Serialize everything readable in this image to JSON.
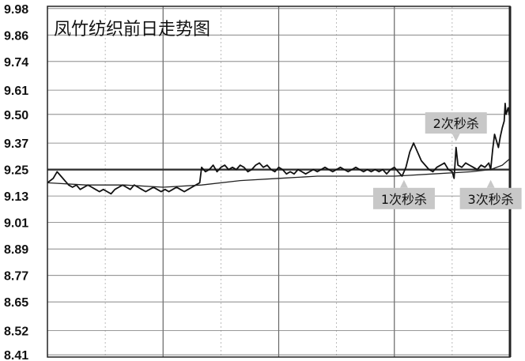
{
  "chart_data": {
    "type": "line",
    "title": "凤竹纺织前日走势图",
    "xlabel": "",
    "ylabel": "",
    "ylim": [
      8.4,
      9.99
    ],
    "yticks": [
      "9.98",
      "9.86",
      "9.74",
      "9.61",
      "9.50",
      "9.37",
      "9.25",
      "9.13",
      "9.01",
      "8.89",
      "8.77",
      "8.65",
      "8.52",
      "8.41"
    ],
    "reference_price": 9.25,
    "x_count": 240,
    "grid": true,
    "series": [
      {
        "style": "price",
        "points": [
          [
            0,
            9.19
          ],
          [
            3,
            9.21
          ],
          [
            5,
            9.24
          ],
          [
            7,
            9.22
          ],
          [
            9,
            9.2
          ],
          [
            11,
            9.18
          ],
          [
            13,
            9.17
          ],
          [
            15,
            9.18
          ],
          [
            17,
            9.16
          ],
          [
            19,
            9.17
          ],
          [
            21,
            9.18
          ],
          [
            23,
            9.17
          ],
          [
            25,
            9.16
          ],
          [
            27,
            9.15
          ],
          [
            29,
            9.16
          ],
          [
            31,
            9.15
          ],
          [
            33,
            9.14
          ],
          [
            35,
            9.16
          ],
          [
            37,
            9.17
          ],
          [
            39,
            9.18
          ],
          [
            41,
            9.17
          ],
          [
            43,
            9.16
          ],
          [
            45,
            9.18
          ],
          [
            47,
            9.17
          ],
          [
            49,
            9.16
          ],
          [
            51,
            9.15
          ],
          [
            53,
            9.16
          ],
          [
            55,
            9.17
          ],
          [
            57,
            9.16
          ],
          [
            59,
            9.15
          ],
          [
            61,
            9.16
          ],
          [
            63,
            9.15
          ],
          [
            65,
            9.16
          ],
          [
            67,
            9.17
          ],
          [
            69,
            9.16
          ],
          [
            71,
            9.15
          ],
          [
            73,
            9.16
          ],
          [
            75,
            9.17
          ],
          [
            77,
            9.18
          ],
          [
            79,
            9.19
          ],
          [
            80,
            9.26
          ],
          [
            82,
            9.24
          ],
          [
            84,
            9.25
          ],
          [
            86,
            9.27
          ],
          [
            88,
            9.24
          ],
          [
            90,
            9.26
          ],
          [
            92,
            9.27
          ],
          [
            94,
            9.25
          ],
          [
            96,
            9.26
          ],
          [
            98,
            9.25
          ],
          [
            100,
            9.27
          ],
          [
            102,
            9.26
          ],
          [
            104,
            9.24
          ],
          [
            106,
            9.25
          ],
          [
            108,
            9.27
          ],
          [
            110,
            9.28
          ],
          [
            112,
            9.26
          ],
          [
            114,
            9.27
          ],
          [
            116,
            9.25
          ],
          [
            118,
            9.24
          ],
          [
            120,
            9.26
          ],
          [
            122,
            9.25
          ],
          [
            124,
            9.23
          ],
          [
            126,
            9.24
          ],
          [
            128,
            9.23
          ],
          [
            130,
            9.25
          ],
          [
            132,
            9.24
          ],
          [
            134,
            9.23
          ],
          [
            136,
            9.24
          ],
          [
            138,
            9.25
          ],
          [
            140,
            9.24
          ],
          [
            142,
            9.25
          ],
          [
            144,
            9.26
          ],
          [
            146,
            9.25
          ],
          [
            148,
            9.24
          ],
          [
            150,
            9.25
          ],
          [
            152,
            9.26
          ],
          [
            154,
            9.25
          ],
          [
            156,
            9.24
          ],
          [
            158,
            9.25
          ],
          [
            160,
            9.26
          ],
          [
            162,
            9.25
          ],
          [
            164,
            9.24
          ],
          [
            166,
            9.25
          ],
          [
            168,
            9.24
          ],
          [
            170,
            9.25
          ],
          [
            172,
            9.24
          ],
          [
            174,
            9.25
          ],
          [
            176,
            9.23
          ],
          [
            178,
            9.25
          ],
          [
            180,
            9.26
          ],
          [
            182,
            9.24
          ],
          [
            184,
            9.22
          ],
          [
            186,
            9.26
          ],
          [
            188,
            9.33
          ],
          [
            190,
            9.37
          ],
          [
            192,
            9.33
          ],
          [
            194,
            9.29
          ],
          [
            196,
            9.27
          ],
          [
            198,
            9.25
          ],
          [
            200,
            9.24
          ],
          [
            202,
            9.26
          ],
          [
            204,
            9.27
          ],
          [
            206,
            9.28
          ],
          [
            208,
            9.25
          ],
          [
            210,
            9.24
          ],
          [
            211,
            9.21
          ],
          [
            212,
            9.35
          ],
          [
            213,
            9.27
          ],
          [
            215,
            9.26
          ],
          [
            217,
            9.28
          ],
          [
            219,
            9.27
          ],
          [
            221,
            9.26
          ],
          [
            223,
            9.25
          ],
          [
            225,
            9.27
          ],
          [
            227,
            9.26
          ],
          [
            229,
            9.28
          ],
          [
            230,
            9.25
          ],
          [
            231,
            9.34
          ],
          [
            232,
            9.41
          ],
          [
            233,
            9.38
          ],
          [
            234,
            9.35
          ],
          [
            235,
            9.4
          ],
          [
            236,
            9.44
          ],
          [
            237,
            9.47
          ],
          [
            237.5,
            9.55
          ],
          [
            238,
            9.5
          ],
          [
            239,
            9.53
          ],
          [
            240,
            9.48
          ]
        ]
      },
      {
        "style": "average",
        "points": [
          [
            0,
            9.19
          ],
          [
            20,
            9.18
          ],
          [
            40,
            9.18
          ],
          [
            60,
            9.17
          ],
          [
            80,
            9.18
          ],
          [
            100,
            9.2
          ],
          [
            120,
            9.21
          ],
          [
            140,
            9.22
          ],
          [
            160,
            9.22
          ],
          [
            180,
            9.22
          ],
          [
            200,
            9.23
          ],
          [
            220,
            9.24
          ],
          [
            230,
            9.25
          ],
          [
            236,
            9.27
          ],
          [
            240,
            9.3
          ]
        ]
      }
    ],
    "annotations": [
      {
        "text": "1次秒杀",
        "x": 185,
        "y": 9.21,
        "position": "below"
      },
      {
        "text": "2次秒杀",
        "x": 212,
        "y": 9.37,
        "position": "above"
      },
      {
        "text": "3次秒杀",
        "x": 230,
        "y": 9.21,
        "position": "below"
      }
    ]
  }
}
